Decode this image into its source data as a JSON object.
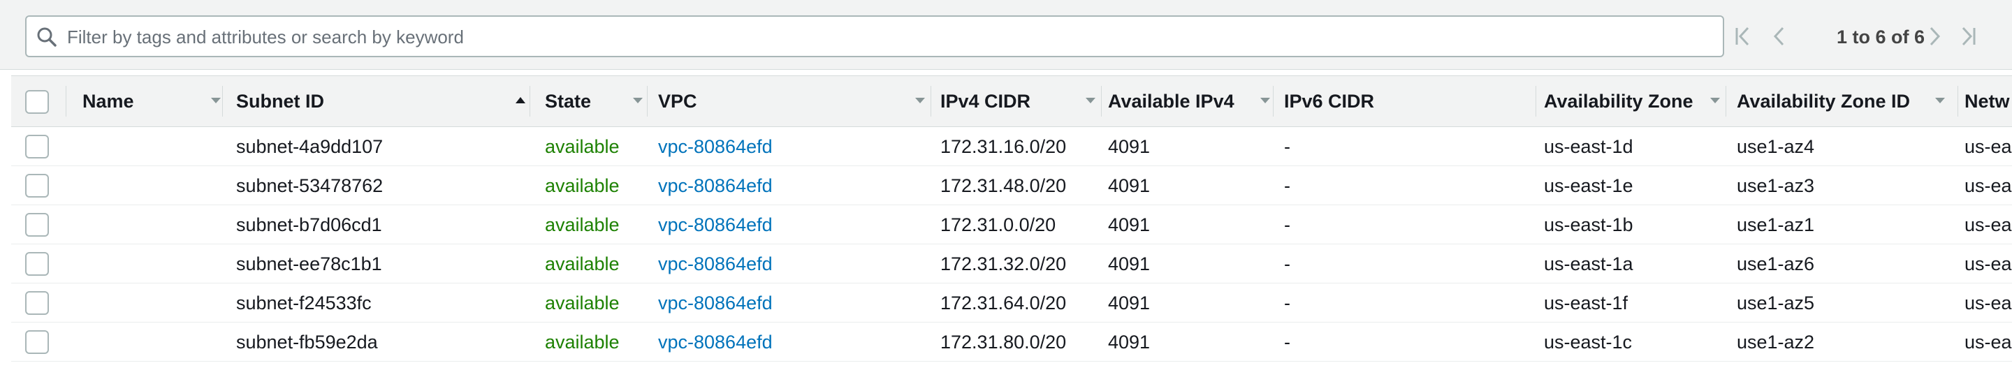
{
  "search": {
    "placeholder": "Filter by tags and attributes or search by keyword",
    "icon": "search-icon",
    "value": ""
  },
  "pagination": {
    "text": "1 to 6 of 6",
    "icons": [
      "first-page-icon",
      "prev-page-icon",
      "next-page-icon",
      "last-page-icon"
    ]
  },
  "columns": [
    {
      "key": "name",
      "label": "Name"
    },
    {
      "key": "subnet_id",
      "label": "Subnet ID",
      "sorted": "ascending"
    },
    {
      "key": "state",
      "label": "State"
    },
    {
      "key": "vpc",
      "label": "VPC"
    },
    {
      "key": "ipv4_cidr",
      "label": "IPv4 CIDR"
    },
    {
      "key": "available_ipv4",
      "label": "Available IPv4"
    },
    {
      "key": "ipv6_cidr",
      "label": "IPv6 CIDR"
    },
    {
      "key": "az",
      "label": "Availability Zone"
    },
    {
      "key": "az_id",
      "label": "Availability Zone ID"
    },
    {
      "key": "network",
      "label": "Netw"
    }
  ],
  "rows": [
    {
      "name": "",
      "subnet_id": "subnet-4a9dd107",
      "state": "available",
      "vpc": "vpc-80864efd",
      "ipv4_cidr": "172.31.16.0/20",
      "available_ipv4": "4091",
      "ipv6_cidr": "-",
      "az": "us-east-1d",
      "az_id": "use1-az4",
      "network": "us-ea"
    },
    {
      "name": "",
      "subnet_id": "subnet-53478762",
      "state": "available",
      "vpc": "vpc-80864efd",
      "ipv4_cidr": "172.31.48.0/20",
      "available_ipv4": "4091",
      "ipv6_cidr": "-",
      "az": "us-east-1e",
      "az_id": "use1-az3",
      "network": "us-ea"
    },
    {
      "name": "",
      "subnet_id": "subnet-b7d06cd1",
      "state": "available",
      "vpc": "vpc-80864efd",
      "ipv4_cidr": "172.31.0.0/20",
      "available_ipv4": "4091",
      "ipv6_cidr": "-",
      "az": "us-east-1b",
      "az_id": "use1-az1",
      "network": "us-ea"
    },
    {
      "name": "",
      "subnet_id": "subnet-ee78c1b1",
      "state": "available",
      "vpc": "vpc-80864efd",
      "ipv4_cidr": "172.31.32.0/20",
      "available_ipv4": "4091",
      "ipv6_cidr": "-",
      "az": "us-east-1a",
      "az_id": "use1-az6",
      "network": "us-ea"
    },
    {
      "name": "",
      "subnet_id": "subnet-f24533fc",
      "state": "available",
      "vpc": "vpc-80864efd",
      "ipv4_cidr": "172.31.64.0/20",
      "available_ipv4": "4091",
      "ipv6_cidr": "-",
      "az": "us-east-1f",
      "az_id": "use1-az5",
      "network": "us-ea"
    },
    {
      "name": "",
      "subnet_id": "subnet-fb59e2da",
      "state": "available",
      "vpc": "vpc-80864efd",
      "ipv4_cidr": "172.31.80.0/20",
      "available_ipv4": "4091",
      "ipv6_cidr": "-",
      "az": "us-east-1c",
      "az_id": "use1-az2",
      "network": "us-ea"
    }
  ],
  "colors": {
    "state_available": "#1d8102",
    "link": "#0073bb",
    "header_bg": "#f2f3f3"
  }
}
